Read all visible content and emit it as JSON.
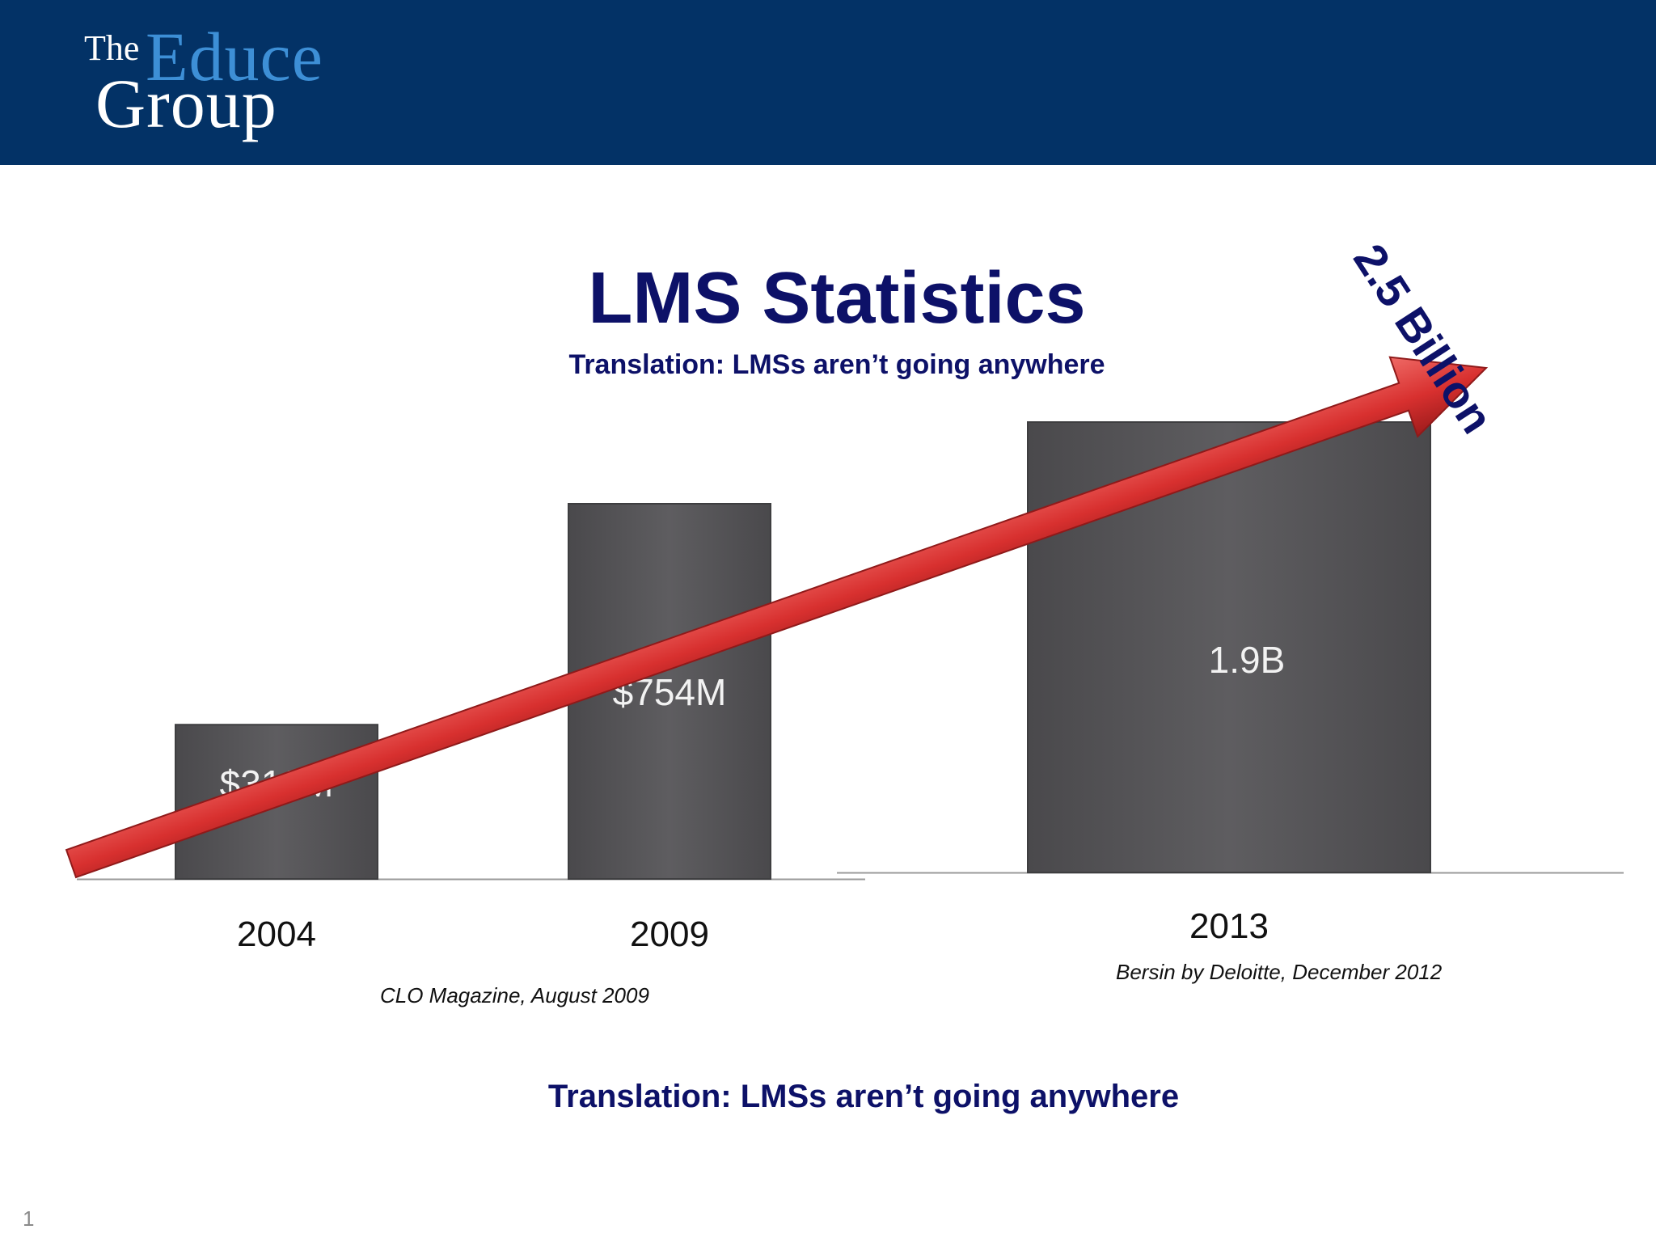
{
  "logo": {
    "the": "The",
    "educe": "Educe",
    "group": "Group"
  },
  "title": "LMS Statistics",
  "subtitle": "Translation: LMSs aren’t going anywhere",
  "bottom_note": "Translation: LMSs aren’t going anywhere",
  "callout": "2.5 Billion",
  "slide_number": "1",
  "sources": [
    "CLO Magazine, August 2009",
    "Bersin by Deloitte, December 2012"
  ],
  "colors": {
    "header": "#033266",
    "logo_accent": "#3d8fd6",
    "title": "#0d1168",
    "bar": "#5e5d60",
    "arrow": "#d8302f"
  },
  "chart_data": {
    "type": "bar",
    "categories": [
      "2004",
      "2009",
      "2013"
    ],
    "values": [
      310,
      754,
      1900
    ],
    "data_labels": [
      "$310M",
      "$754M",
      "1.9B"
    ],
    "units": "USD millions",
    "trend_arrow": {
      "label": "2.5 Billion",
      "value": 2500
    }
  }
}
